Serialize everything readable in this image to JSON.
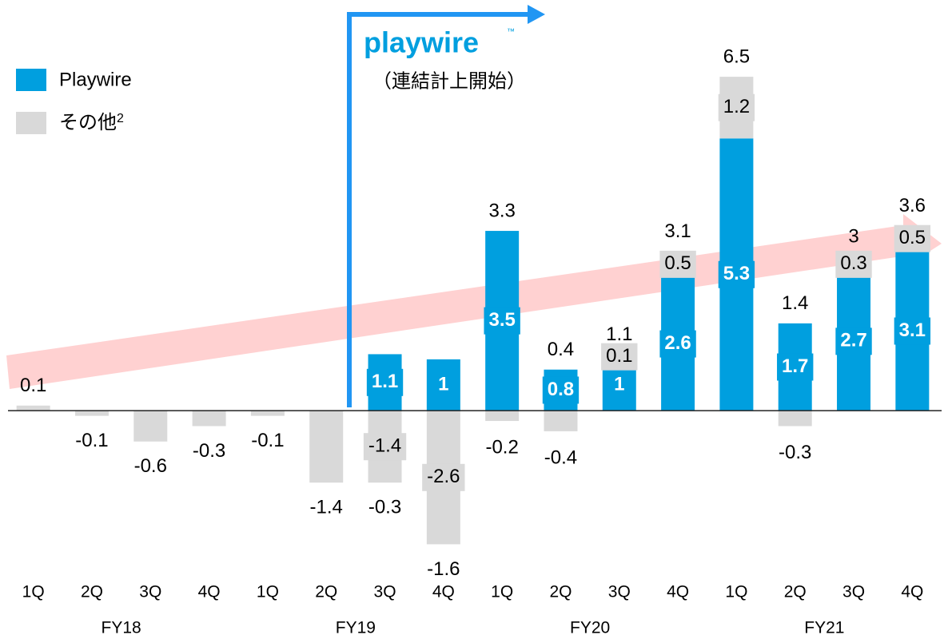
{
  "chart_data": {
    "type": "stacked_bar",
    "categories": [
      "1Q",
      "2Q",
      "3Q",
      "4Q",
      "1Q",
      "2Q",
      "3Q",
      "4Q",
      "1Q",
      "2Q",
      "3Q",
      "4Q",
      "1Q",
      "2Q",
      "3Q",
      "4Q"
    ],
    "group_labels": [
      "FY18",
      "FY19",
      "FY20",
      "FY21"
    ],
    "series": [
      {
        "name": "Playwire",
        "color": "#009fdf",
        "values": [
          null,
          null,
          null,
          null,
          null,
          null,
          1.1,
          1.0,
          3.5,
          0.8,
          1.0,
          2.6,
          5.3,
          1.7,
          2.7,
          3.1
        ]
      },
      {
        "name": "その他",
        "name_note": "2",
        "color": "#d9d9d9",
        "values": [
          0.1,
          -0.1,
          -0.6,
          -0.3,
          -0.1,
          -1.4,
          -1.4,
          -2.6,
          -0.2,
          -0.4,
          0.1,
          0.5,
          1.2,
          -0.3,
          0.3,
          0.5
        ]
      }
    ],
    "totals": [
      0.1,
      -0.1,
      -0.6,
      -0.3,
      -0.1,
      -1.4,
      -0.3,
      -1.6,
      3.3,
      0.4,
      1.1,
      3.1,
      6.5,
      1.4,
      3.0,
      3.6
    ],
    "annotation": {
      "logo": "playwire",
      "logo_mark": "™",
      "text": "（連結計上開始）"
    },
    "ylim": [
      -3.2,
      7.8
    ]
  }
}
